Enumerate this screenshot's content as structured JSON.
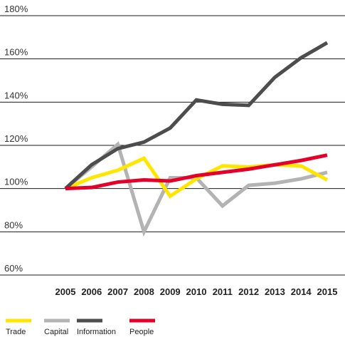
{
  "chart_data": {
    "type": "line",
    "x": [
      "2005",
      "2006",
      "2007",
      "2008",
      "2009",
      "2010",
      "2011",
      "2012",
      "2013",
      "2014",
      "2015"
    ],
    "y_ticks": [
      "60%",
      "80%",
      "100%",
      "120%",
      "140%",
      "160%",
      "180%"
    ],
    "y_tick_values": [
      60,
      80,
      100,
      120,
      140,
      160,
      180
    ],
    "ylim": [
      60,
      180
    ],
    "grid": "horizontal",
    "legend": "bottom",
    "series": [
      {
        "name": "Trade",
        "color": "#ffe600",
        "values": [
          100,
          105,
          108.5,
          114,
          96.5,
          104.5,
          110.5,
          110,
          111,
          110.5,
          104
        ]
      },
      {
        "name": "Capital",
        "color": "#b3b3b3",
        "values": [
          100,
          110,
          120.5,
          80,
          105,
          105,
          92,
          101.5,
          102.5,
          104.5,
          107.5
        ]
      },
      {
        "name": "Information",
        "color": "#4d4d4d",
        "values": [
          100,
          111,
          118.5,
          121.5,
          128,
          141,
          139,
          138.5,
          151.5,
          160.5,
          167.5
        ]
      },
      {
        "name": "People",
        "color": "#e4002b",
        "values": [
          100,
          100.5,
          103,
          104,
          103.5,
          106,
          107.5,
          109,
          111,
          113,
          115.5
        ]
      }
    ]
  }
}
